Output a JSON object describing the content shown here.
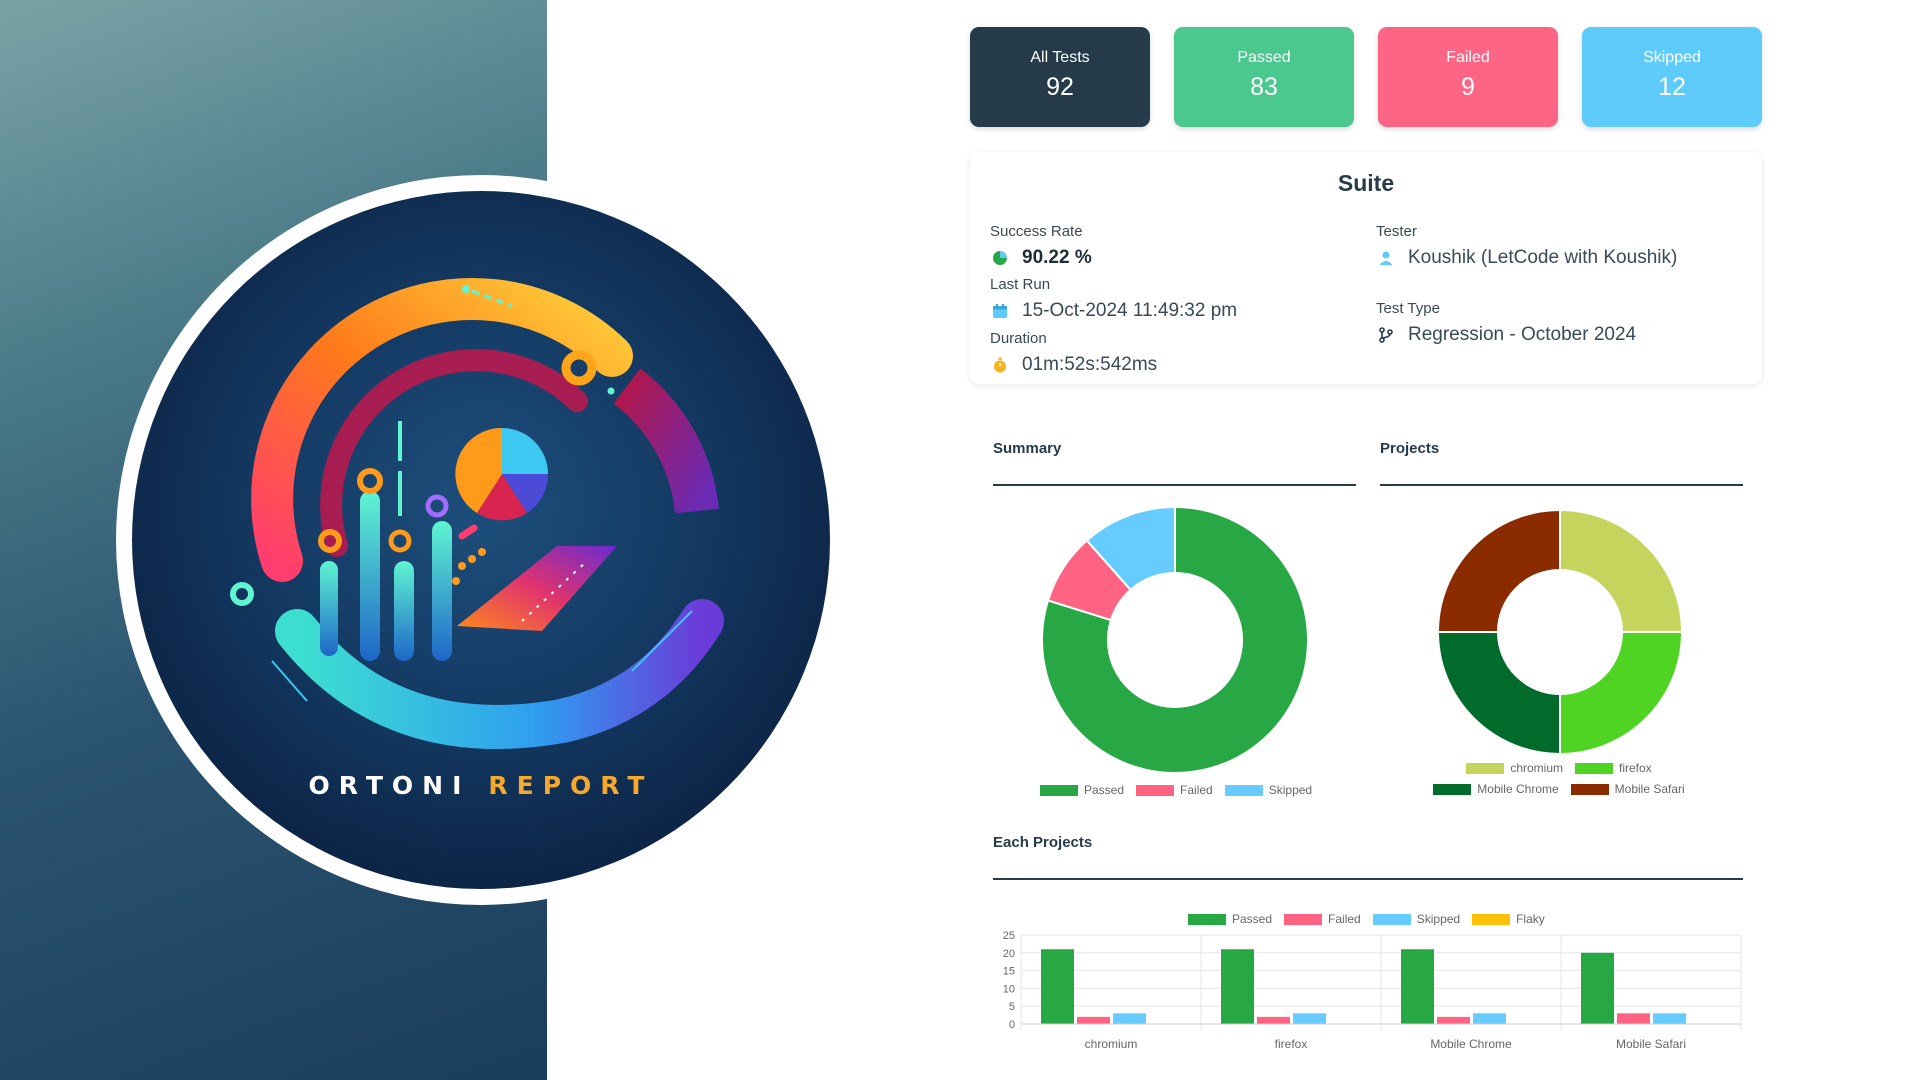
{
  "brand": {
    "word1": "ORTONI",
    "word2": "REPORT"
  },
  "cards": {
    "all": {
      "label": "All Tests",
      "value": "92",
      "color": "#253b49"
    },
    "passed": {
      "label": "Passed",
      "value": "83",
      "color": "#4ac88d"
    },
    "failed": {
      "label": "Failed",
      "value": "9",
      "color": "#fd6585"
    },
    "skipped": {
      "label": "Skipped",
      "value": "12",
      "color": "#5ecbfb"
    }
  },
  "suite": {
    "title": "Suite",
    "success_rate_label": "Success Rate",
    "success_rate_value": "90.22 %",
    "last_run_label": "Last Run",
    "last_run_value": "15-Oct-2024 11:49:32 pm",
    "duration_label": "Duration",
    "duration_value": "01m:52s:542ms",
    "tester_label": "Tester",
    "tester_value": "Koushik (LetCode with Koushik)",
    "test_type_label": "Test Type",
    "test_type_value": "Regression - October 2024"
  },
  "sections": {
    "summary": "Summary",
    "projects": "Projects",
    "each_projects": "Each Projects"
  },
  "colors": {
    "passed": "#28a745",
    "failed": "#ff6384",
    "skipped": "#66ccff",
    "flaky": "#ffc107",
    "chromium": "#c4d45c",
    "firefox": "#4fd423",
    "mobile_chrome": "#006b2b",
    "mobile_safari": "#8b2c00"
  },
  "chart_data": [
    {
      "type": "pie",
      "title": "Summary",
      "categories": [
        "Passed",
        "Failed",
        "Skipped"
      ],
      "values": [
        83,
        9,
        12
      ],
      "donut": true,
      "legend": "bottom"
    },
    {
      "type": "pie",
      "title": "Projects",
      "categories": [
        "chromium",
        "firefox",
        "Mobile Chrome",
        "Mobile Safari"
      ],
      "values": [
        23,
        23,
        23,
        23
      ],
      "donut": true,
      "legend": "bottom"
    },
    {
      "type": "bar",
      "title": "Each Projects",
      "categories": [
        "chromium",
        "firefox",
        "Mobile Chrome",
        "Mobile Safari"
      ],
      "series": [
        {
          "name": "Passed",
          "values": [
            21,
            21,
            21,
            20
          ]
        },
        {
          "name": "Failed",
          "values": [
            2,
            2,
            2,
            3
          ]
        },
        {
          "name": "Skipped",
          "values": [
            3,
            3,
            3,
            3
          ]
        },
        {
          "name": "Flaky",
          "values": [
            0,
            0,
            0,
            0
          ]
        }
      ],
      "ylim": [
        0,
        25
      ],
      "yticks": [
        0,
        5,
        10,
        15,
        20,
        25
      ],
      "grid": true,
      "legend": "top"
    }
  ]
}
